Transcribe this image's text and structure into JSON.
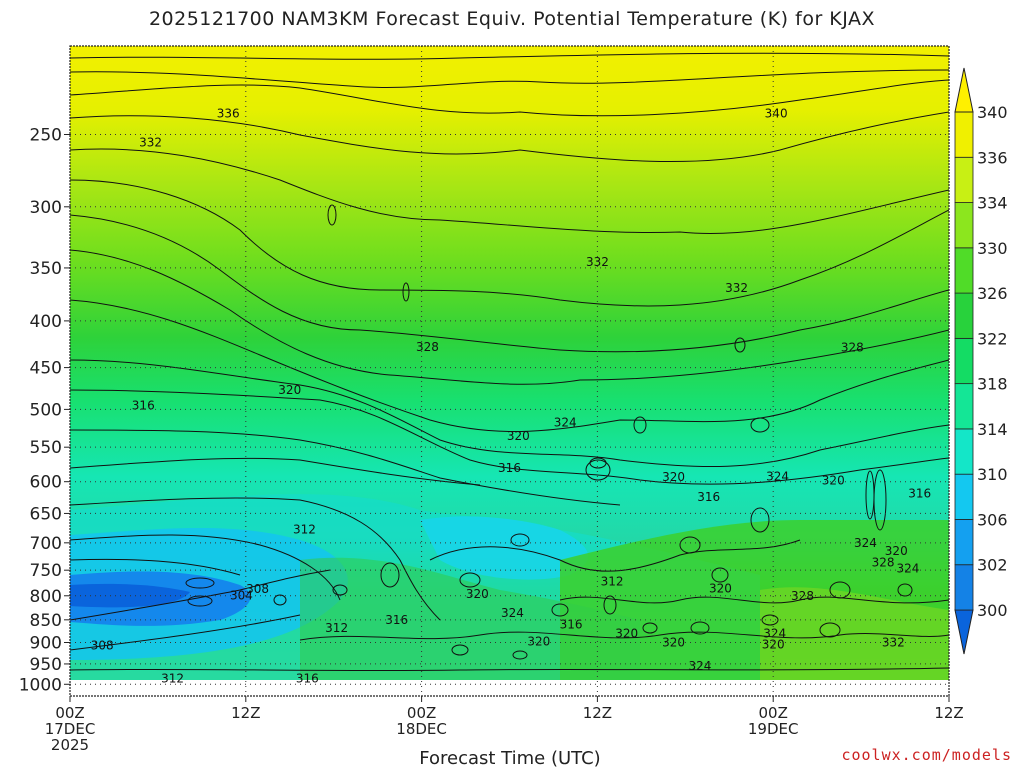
{
  "chart_data": {
    "type": "heatmap",
    "title": "2025121700 NAM3KM Forecast Equiv. Potential Temperature (K) for KJAX",
    "xlabel": "Forecast Time (UTC)",
    "ylabel": "",
    "y_ticks": [
      "250",
      "300",
      "350",
      "400",
      "450",
      "500",
      "550",
      "600",
      "650",
      "700",
      "750",
      "800",
      "850",
      "900",
      "950",
      "1000"
    ],
    "y_tick_values": [
      250,
      300,
      350,
      400,
      450,
      500,
      550,
      600,
      650,
      700,
      750,
      800,
      850,
      900,
      950,
      1000
    ],
    "ylim": [
      200,
      1030
    ],
    "x_ticks": [
      {
        "hour": 0,
        "line1": "00Z",
        "line2": "17DEC",
        "line3": "2025"
      },
      {
        "hour": 12,
        "line1": "12Z",
        "line2": "",
        "line3": ""
      },
      {
        "hour": 24,
        "line1": "00Z",
        "line2": "18DEC",
        "line3": ""
      },
      {
        "hour": 36,
        "line1": "12Z",
        "line2": "",
        "line3": ""
      },
      {
        "hour": 48,
        "line1": "00Z",
        "line2": "19DEC",
        "line3": ""
      },
      {
        "hour": 60,
        "line1": "12Z",
        "line2": "",
        "line3": ""
      }
    ],
    "xlim": [
      0,
      60
    ],
    "colorbar": {
      "labels": [
        "300",
        "302",
        "306",
        "310",
        "314",
        "318",
        "322",
        "326",
        "330",
        "334",
        "336",
        "340"
      ],
      "colors": [
        "#0a64dc",
        "#1482e6",
        "#14a0f0",
        "#14c8f0",
        "#14e6c8",
        "#14e696",
        "#14dc64",
        "#28d23c",
        "#50dc28",
        "#8ce61e",
        "#c8f014",
        "#f0f000",
        "#fff000"
      ]
    },
    "contour_labels": [
      {
        "text": "336",
        "hour": 10.8,
        "p": 237
      },
      {
        "text": "340",
        "hour": 48.2,
        "p": 237
      },
      {
        "text": "332",
        "hour": 5.5,
        "p": 255
      },
      {
        "text": "332",
        "hour": 36.0,
        "p": 345
      },
      {
        "text": "332",
        "hour": 45.5,
        "p": 368
      },
      {
        "text": "328",
        "hour": 24.4,
        "p": 427
      },
      {
        "text": "328",
        "hour": 53.4,
        "p": 428
      },
      {
        "text": "320",
        "hour": 15.0,
        "p": 476
      },
      {
        "text": "316",
        "hour": 5.0,
        "p": 495
      },
      {
        "text": "324",
        "hour": 33.8,
        "p": 517
      },
      {
        "text": "320",
        "hour": 30.6,
        "p": 535
      },
      {
        "text": "316",
        "hour": 30.0,
        "p": 580
      },
      {
        "text": "320",
        "hour": 41.2,
        "p": 593
      },
      {
        "text": "324",
        "hour": 48.3,
        "p": 592
      },
      {
        "text": "320",
        "hour": 52.1,
        "p": 598
      },
      {
        "text": "316",
        "hour": 43.6,
        "p": 624
      },
      {
        "text": "316",
        "hour": 58.0,
        "p": 618
      },
      {
        "text": "312",
        "hour": 16.0,
        "p": 677
      },
      {
        "text": "324",
        "hour": 54.3,
        "p": 700
      },
      {
        "text": "320",
        "hour": 56.4,
        "p": 715
      },
      {
        "text": "328",
        "hour": 55.5,
        "p": 736
      },
      {
        "text": "324",
        "hour": 57.2,
        "p": 747
      },
      {
        "text": "312",
        "hour": 37.0,
        "p": 772
      },
      {
        "text": "308",
        "hour": 12.8,
        "p": 786
      },
      {
        "text": "320",
        "hour": 44.4,
        "p": 785
      },
      {
        "text": "320",
        "hour": 27.8,
        "p": 796
      },
      {
        "text": "304",
        "hour": 11.7,
        "p": 799
      },
      {
        "text": "328",
        "hour": 50.0,
        "p": 800
      },
      {
        "text": "324",
        "hour": 30.2,
        "p": 835
      },
      {
        "text": "316",
        "hour": 22.3,
        "p": 850
      },
      {
        "text": "312",
        "hour": 18.2,
        "p": 868
      },
      {
        "text": "316",
        "hour": 34.2,
        "p": 860
      },
      {
        "text": "320",
        "hour": 38.0,
        "p": 880
      },
      {
        "text": "324",
        "hour": 48.1,
        "p": 880
      },
      {
        "text": "320",
        "hour": 32.0,
        "p": 898
      },
      {
        "text": "320",
        "hour": 41.2,
        "p": 900
      },
      {
        "text": "320",
        "hour": 48.0,
        "p": 905
      },
      {
        "text": "332",
        "hour": 56.2,
        "p": 900
      },
      {
        "text": "308",
        "hour": 2.2,
        "p": 907
      },
      {
        "text": "324",
        "hour": 43.0,
        "p": 955
      },
      {
        "text": "312",
        "hour": 7.0,
        "p": 985
      },
      {
        "text": "316",
        "hour": 16.2,
        "p": 985
      }
    ]
  },
  "credit": "coolwx.com/models"
}
